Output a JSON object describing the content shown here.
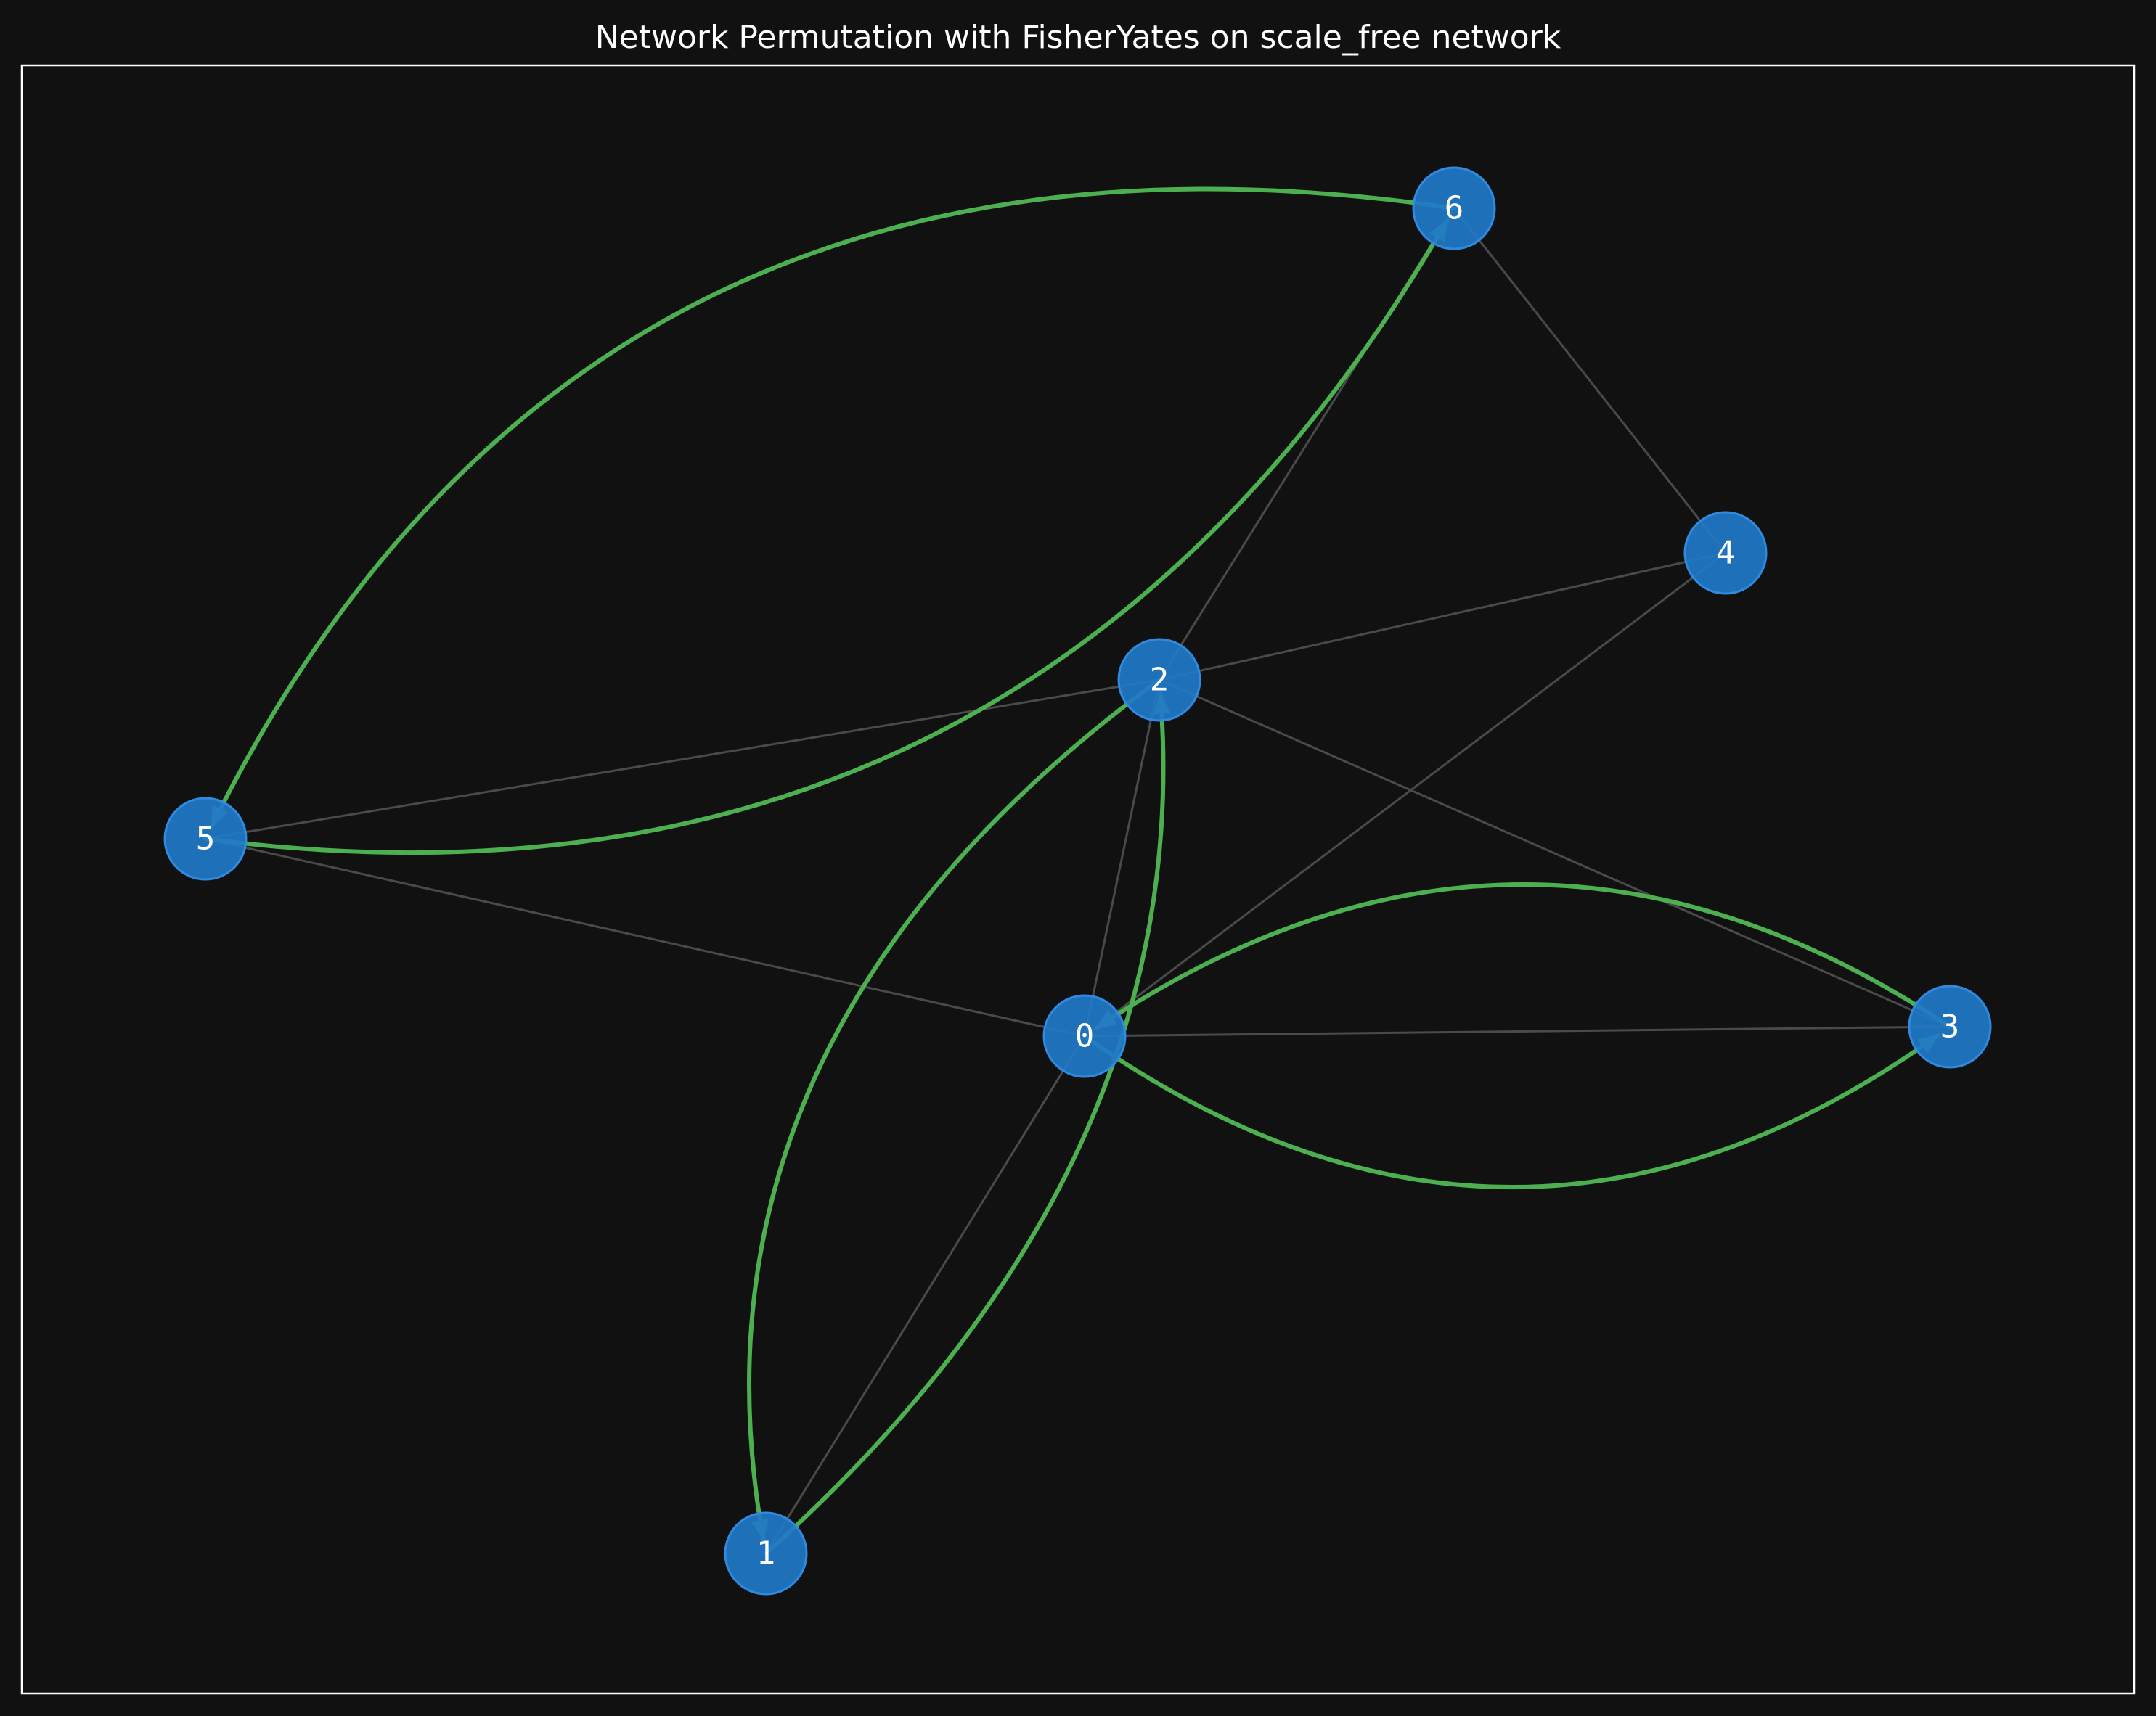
{
  "title": "Network Permutation with FisherYates on scale_free network",
  "colors": {
    "background": "#111111",
    "node_fill": "#1f78c8",
    "node_stroke": "#2f8ae0",
    "base_edge": "#4a4a4a",
    "permutation_edge": "#4caf50",
    "frame": "#ffffff",
    "text": "#ffffff"
  },
  "nodes": [
    {
      "id": "0",
      "label": "0"
    },
    {
      "id": "1",
      "label": "1"
    },
    {
      "id": "2",
      "label": "2"
    },
    {
      "id": "3",
      "label": "3"
    },
    {
      "id": "4",
      "label": "4"
    },
    {
      "id": "5",
      "label": "5"
    },
    {
      "id": "6",
      "label": "6"
    }
  ],
  "base_edges": [
    {
      "source": "0",
      "target": "1"
    },
    {
      "source": "0",
      "target": "2"
    },
    {
      "source": "0",
      "target": "3"
    },
    {
      "source": "0",
      "target": "4"
    },
    {
      "source": "0",
      "target": "5"
    },
    {
      "source": "2",
      "target": "3"
    },
    {
      "source": "2",
      "target": "4"
    },
    {
      "source": "2",
      "target": "5"
    },
    {
      "source": "2",
      "target": "6"
    },
    {
      "source": "4",
      "target": "6"
    }
  ],
  "permutation_edges": [
    {
      "source": "0",
      "target": "3"
    },
    {
      "source": "3",
      "target": "0"
    },
    {
      "source": "1",
      "target": "2"
    },
    {
      "source": "2",
      "target": "1"
    },
    {
      "source": "5",
      "target": "6"
    },
    {
      "source": "6",
      "target": "5"
    }
  ]
}
